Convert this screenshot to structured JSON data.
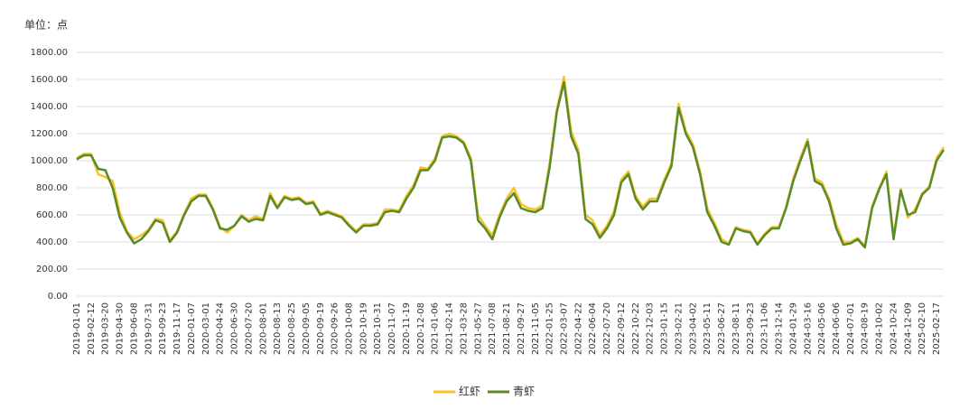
{
  "chart_data": {
    "type": "line",
    "unit_label": "单位：点",
    "categories": [
      "2019-01-01",
      null,
      "2019-02-12",
      null,
      "2019-03-20",
      null,
      "2019-04-30",
      null,
      "2019-06-08",
      null,
      "2019-07-31",
      null,
      "2019-09-23",
      null,
      "2019-11-17",
      null,
      "2020-01-07",
      null,
      "2020-03-01",
      null,
      "2020-04-24",
      null,
      "2020-06-30",
      null,
      "2020-07-20",
      null,
      "2020-08-01",
      null,
      "2020-08-13",
      null,
      "2020-08-25",
      null,
      "2020-09-05",
      null,
      "2020-09-19",
      null,
      "2020-09-26",
      null,
      "2020-10-08",
      null,
      "2020-10-19",
      null,
      "2020-10-31",
      null,
      "2020-11-07",
      null,
      "2020-11-19",
      null,
      "2020-12-08",
      null,
      "2021-01-06",
      null,
      "2021-02-14",
      null,
      "2021-03-28",
      null,
      "2021-05-27",
      null,
      "2021-07-08",
      null,
      "2021-08-21",
      null,
      "2021-09-27",
      null,
      "2021-11-05",
      null,
      "2022-01-25",
      null,
      "2022-03-07",
      null,
      "2022-04-22",
      null,
      "2022-06-04",
      null,
      "2022-07-20",
      null,
      "2022-09-12",
      null,
      "2022-10-22",
      null,
      "2022-12-03",
      null,
      "2023-01-15",
      null,
      "2023-02-21",
      null,
      "2023-04-02",
      null,
      "2023-05-11",
      null,
      "2023-06-27",
      null,
      "2023-08-11",
      null,
      "2023-09-23",
      null,
      "2023-11-06",
      null,
      "2023-12-14",
      null,
      "2024-01-29",
      null,
      "2024-03-16",
      null,
      "2024-05-06",
      null,
      "2024-06-06",
      null,
      "2024-07-01",
      null,
      "2024-08-19",
      null,
      "2024-10-02",
      null,
      "2024-10-24",
      null,
      "2024-12-09",
      null,
      "2025-02-10",
      null,
      "2025-02-17",
      null
    ],
    "series": [
      {
        "name": "红虾",
        "color": "#f7c325",
        "values": [
          1020,
          1050,
          1050,
          900,
          880,
          850,
          620,
          480,
          420,
          450,
          490,
          570,
          560,
          410,
          480,
          610,
          720,
          750,
          750,
          650,
          510,
          470,
          520,
          600,
          560,
          590,
          570,
          760,
          660,
          740,
          720,
          730,
          690,
          700,
          610,
          630,
          610,
          590,
          530,
          480,
          530,
          530,
          540,
          640,
          640,
          630,
          740,
          820,
          950,
          940,
          1020,
          1180,
          1200,
          1180,
          1140,
          1020,
          600,
          520,
          450,
          600,
          720,
          800,
          680,
          650,
          640,
          670,
          980,
          1380,
          1620,
          1220,
          1080,
          600,
          560,
          450,
          520,
          630,
          860,
          920,
          740,
          660,
          720,
          720,
          860,
          980,
          1420,
          1220,
          1120,
          920,
          650,
          540,
          420,
          390,
          510,
          490,
          480,
          390,
          460,
          510,
          510,
          660,
          870,
          1020,
          1160,
          870,
          840,
          720,
          530,
          400,
          400,
          430,
          370,
          660,
          800,
          920,
          440,
          790,
          580,
          640,
          760,
          810,
          1020,
          1100
        ]
      },
      {
        "name": "青虾",
        "color": "#5a8a2c",
        "values": [
          1010,
          1040,
          1040,
          940,
          930,
          800,
          580,
          470,
          390,
          420,
          480,
          560,
          540,
          400,
          470,
          600,
          700,
          740,
          740,
          640,
          500,
          490,
          520,
          590,
          550,
          570,
          560,
          740,
          650,
          730,
          710,
          720,
          680,
          690,
          600,
          620,
          600,
          580,
          520,
          470,
          520,
          520,
          530,
          620,
          630,
          620,
          720,
          800,
          930,
          930,
          1000,
          1170,
          1180,
          1170,
          1130,
          1000,
          560,
          500,
          420,
          580,
          700,
          760,
          650,
          630,
          620,
          650,
          950,
          1360,
          1580,
          1180,
          1050,
          570,
          530,
          430,
          500,
          600,
          840,
          900,
          720,
          640,
          700,
          700,
          840,
          960,
          1390,
          1200,
          1100,
          900,
          620,
          520,
          400,
          380,
          500,
          480,
          470,
          380,
          450,
          500,
          500,
          650,
          850,
          1000,
          1140,
          850,
          820,
          700,
          500,
          380,
          390,
          420,
          360,
          650,
          790,
          900,
          420,
          780,
          600,
          620,
          750,
          800,
          1000,
          1080
        ]
      }
    ],
    "ylim": [
      0,
      1800
    ],
    "yticks": [
      {
        "value": 0,
        "label": "0.00"
      },
      {
        "value": 200,
        "label": "200.00"
      },
      {
        "value": 400,
        "label": "400.00"
      },
      {
        "value": 600,
        "label": "600.00"
      },
      {
        "value": 800,
        "label": "800.00"
      },
      {
        "value": 1000,
        "label": "1000.00"
      },
      {
        "value": 1200,
        "label": "1200.00"
      },
      {
        "value": 1400,
        "label": "1400.00"
      },
      {
        "value": 1600,
        "label": "1600.00"
      },
      {
        "value": 1800,
        "label": "1800.00"
      }
    ],
    "grid": true
  }
}
